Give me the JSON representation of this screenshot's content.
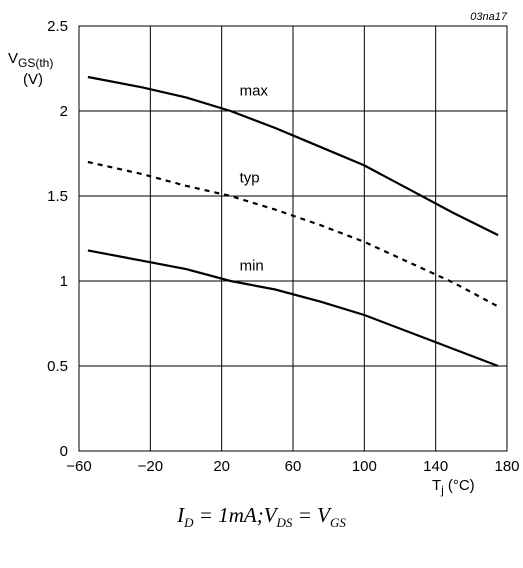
{
  "chart_data": {
    "type": "line",
    "figure_code": "03na17",
    "ylabel_main": "V",
    "ylabel_sub": "GS(th)",
    "ylabel_unit": "(V)",
    "xlabel_main": "T",
    "xlabel_sub": "j",
    "xlabel_unit": "(°C)",
    "xlim": [
      -60,
      180
    ],
    "ylim": [
      0,
      2.5
    ],
    "x_ticks": [
      -60,
      -20,
      20,
      60,
      100,
      140,
      180
    ],
    "x_tick_labels": [
      "−60",
      "−20",
      "20",
      "60",
      "100",
      "140",
      "180"
    ],
    "y_ticks": [
      0,
      0.5,
      1,
      1.5,
      2,
      2.5
    ],
    "y_tick_labels": [
      "0",
      "0.5",
      "1",
      "1.5",
      "2",
      "2.5"
    ],
    "grid": true,
    "series": [
      {
        "name": "max",
        "style": "solid",
        "label_at": [
          25,
          2.12
        ],
        "x": [
          -55,
          -25,
          0,
          25,
          50,
          75,
          100,
          125,
          150,
          175
        ],
        "y": [
          2.2,
          2.14,
          2.08,
          2.0,
          1.9,
          1.79,
          1.68,
          1.54,
          1.4,
          1.27
        ]
      },
      {
        "name": "typ",
        "style": "dashed",
        "label_at": [
          25,
          1.61
        ],
        "x": [
          -55,
          -25,
          0,
          25,
          50,
          75,
          100,
          125,
          150,
          175
        ],
        "y": [
          1.7,
          1.63,
          1.56,
          1.5,
          1.42,
          1.33,
          1.23,
          1.11,
          0.99,
          0.85
        ]
      },
      {
        "name": "min",
        "style": "solid",
        "label_at": [
          25,
          1.09
        ],
        "x": [
          -55,
          -25,
          0,
          25,
          50,
          75,
          100,
          125,
          150,
          175
        ],
        "y": [
          1.18,
          1.12,
          1.07,
          1.0,
          0.95,
          0.88,
          0.8,
          0.7,
          0.6,
          0.5
        ]
      }
    ]
  },
  "condition": "I_D = 1mA; V_DS = V_GS"
}
